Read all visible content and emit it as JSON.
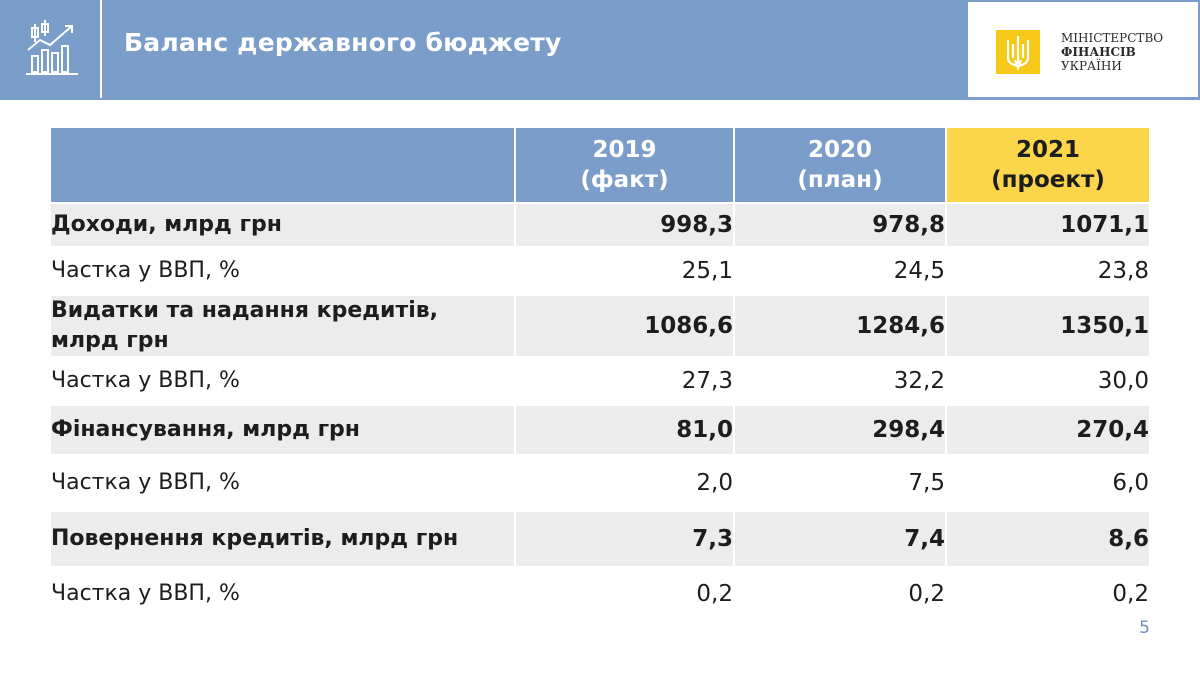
{
  "header": {
    "title": "Баланс державного бюджету",
    "icon": "chart-growth-icon",
    "logo": {
      "emblem": "trident-emblem-icon",
      "line1": "МІНІСТЕРСТВО",
      "line2": "ФІНАНСІВ",
      "line3": "УКРАЇНИ"
    }
  },
  "colors": {
    "header_bg": "#7b9dc9",
    "highlight": "#fcd64a",
    "shade": "#ececec"
  },
  "table": {
    "columns": [
      {
        "year": "2019",
        "note": "(факт)"
      },
      {
        "year": "2020",
        "note": "(план)"
      },
      {
        "year": "2021",
        "note": "(проект)"
      }
    ],
    "rows": [
      {
        "label": "Доходи, млрд грн",
        "values": [
          "998,3",
          "978,8",
          "1071,1"
        ]
      },
      {
        "label": "Частка у ВВП, %",
        "values": [
          "25,1",
          "24,5",
          "23,8"
        ]
      },
      {
        "label_line1": "Видатки та надання кредитів,",
        "label_line2": "млрд грн",
        "values": [
          "1086,6",
          "1284,6",
          "1350,1"
        ]
      },
      {
        "label": "Частка у ВВП, %",
        "values": [
          "27,3",
          "32,2",
          "30,0"
        ]
      },
      {
        "label": "Фінансування, млрд грн",
        "values": [
          "81,0",
          "298,4",
          "270,4"
        ]
      },
      {
        "label": "Частка у ВВП, %",
        "values": [
          "2,0",
          "7,5",
          "6,0"
        ]
      },
      {
        "label": "Повернення кредитів, млрд грн",
        "values": [
          "7,3",
          "7,4",
          "8,6"
        ]
      },
      {
        "label": "Частка у ВВП, %",
        "values": [
          "0,2",
          "0,2",
          "0,2"
        ]
      }
    ]
  },
  "page_number": "5"
}
